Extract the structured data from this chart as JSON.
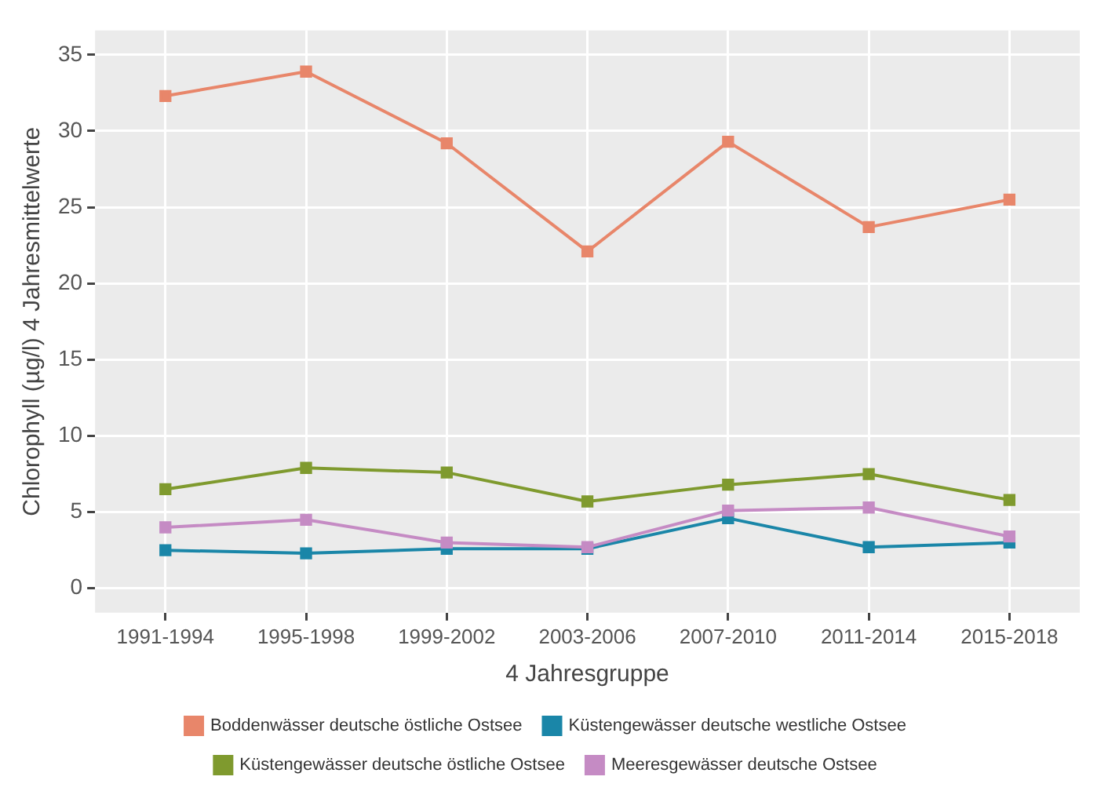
{
  "chart_data": {
    "type": "line",
    "xlabel": "4 Jahresgruppe",
    "ylabel": "Chlorophyll (µg/l) 4 Jahresmittelwerte",
    "categories": [
      "1991-1994",
      "1995-1998",
      "1999-2002",
      "2003-2006",
      "2007-2010",
      "2011-2014",
      "2015-2018"
    ],
    "series": [
      {
        "name": "Boddenwässer deutsche östliche Ostsee",
        "color": "#e8866a",
        "values": [
          32.3,
          33.9,
          29.2,
          22.1,
          29.3,
          23.7,
          25.5
        ]
      },
      {
        "name": "Küstengewässer deutsche westliche Ostsee",
        "color": "#1a86a8",
        "values": [
          2.5,
          2.3,
          2.6,
          2.6,
          4.6,
          2.7,
          3.0
        ]
      },
      {
        "name": "Küstengewässer deutsche östliche Ostsee",
        "color": "#7f9a2e",
        "values": [
          6.5,
          7.9,
          7.6,
          5.7,
          6.8,
          7.5,
          5.8
        ]
      },
      {
        "name": "Meeresgewässer deutsche Ostsee",
        "color": "#c58bc4",
        "values": [
          4.0,
          4.5,
          3.0,
          2.7,
          5.1,
          5.3,
          3.4
        ]
      }
    ],
    "ylim": [
      -1.6,
      36.6
    ],
    "yticks": [
      0,
      5,
      10,
      15,
      20,
      25,
      30,
      35
    ],
    "grid": true,
    "legend": "bottom",
    "marker": "square",
    "line_style": "solid"
  }
}
